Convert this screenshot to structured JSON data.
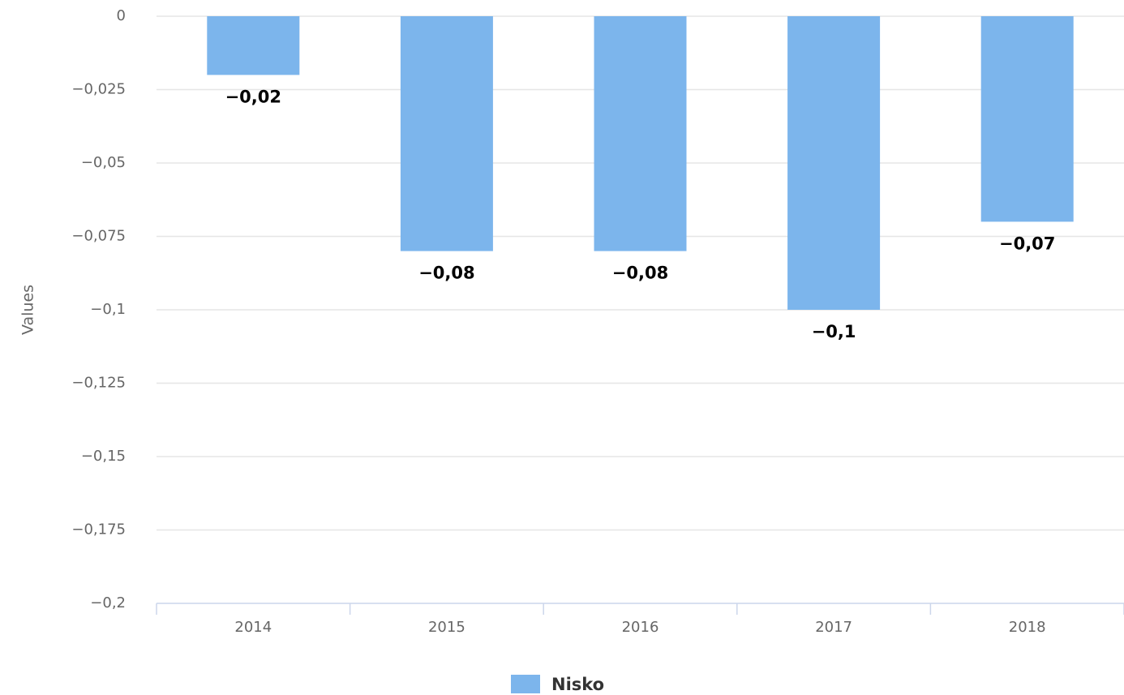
{
  "chart_data": {
    "type": "bar",
    "ylabel": "Values",
    "categories": [
      "2014",
      "2015",
      "2016",
      "2017",
      "2018"
    ],
    "series": [
      {
        "name": "Nisko",
        "color": "#7cb5ec",
        "values": [
          -0.02,
          -0.08,
          -0.08,
          -0.1,
          -0.07
        ],
        "value_labels": [
          "−0,02",
          "−0,08",
          "−0,08",
          "−0,1",
          "−0,07"
        ]
      }
    ],
    "ylim": [
      -0.2,
      0
    ],
    "yticks": [
      0,
      {
        "value": -0.025,
        "label": "−0,025"
      },
      {
        "value": -0.05,
        "label": "−0,05"
      },
      {
        "value": -0.075,
        "label": "−0,075"
      },
      {
        "value": -0.1,
        "label": "−0,1"
      },
      {
        "value": -0.125,
        "label": "−0,125"
      },
      {
        "value": -0.15,
        "label": "−0,15"
      },
      {
        "value": -0.175,
        "label": "−0,175"
      },
      {
        "value": -0.2,
        "label": "−0,2"
      }
    ],
    "grid": true,
    "legend": "bottom"
  }
}
